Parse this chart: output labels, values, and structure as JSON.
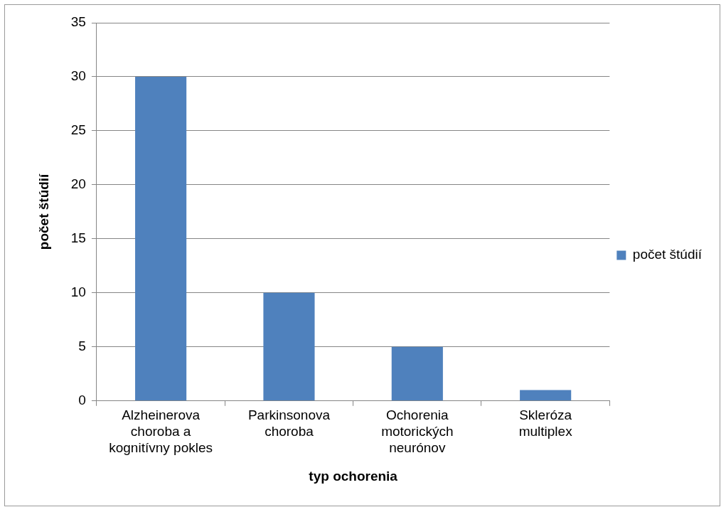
{
  "chart_data": {
    "type": "bar",
    "xlabel": "typ ochorenia",
    "ylabel": "počet štúdií",
    "categories": [
      "Alzheinerova choroba a kognitívny pokles",
      "Parkinsonova choroba",
      "Ochorenia motorických neurónov",
      "Skleróza multiplex"
    ],
    "series": [
      {
        "name": "počet štúdií",
        "color": "#4f81bd",
        "values": [
          30,
          10,
          5,
          1
        ]
      }
    ],
    "ylim": [
      0,
      35
    ],
    "yticks": [
      0,
      5,
      10,
      15,
      20,
      25,
      30,
      35
    ],
    "grid": "y",
    "legend": "right"
  }
}
